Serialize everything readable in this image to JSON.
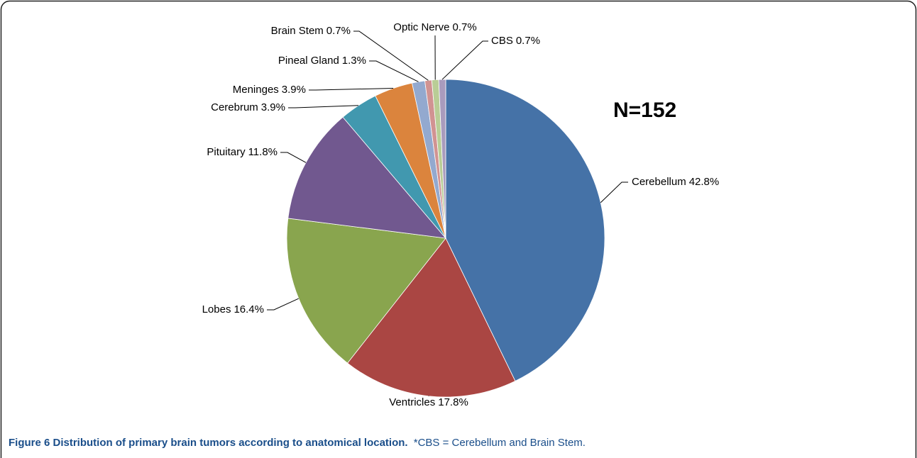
{
  "chart_data": {
    "type": "pie",
    "title": "Figure 6 Distribution of primary brain tumors according to anatomical location.",
    "subtitle": "*CBS = Cerebellum and Brain Stem.",
    "annotation": "N=152",
    "categories": [
      "Cerebellum",
      "Ventricles",
      "Lobes",
      "Pituitary",
      "Cerebrum",
      "Meninges",
      "Pineal Gland",
      "Brain Stem",
      "Optic Nerve",
      "CBS"
    ],
    "values": [
      42.8,
      17.8,
      16.4,
      11.8,
      3.9,
      3.9,
      1.3,
      0.7,
      0.7,
      0.7
    ],
    "value_labels": [
      "42.8%",
      "17.8%",
      "16.4%",
      "11.8%",
      "3.9%",
      "3.9%",
      "1.3%",
      "0.7%",
      "0.7%",
      "0.7%"
    ],
    "colors": [
      "#4572a7",
      "#aa4643",
      "#89a54e",
      "#71588f",
      "#4198af",
      "#db843d",
      "#93a9cf",
      "#d19392",
      "#b9cd96",
      "#a99bbd"
    ]
  }
}
